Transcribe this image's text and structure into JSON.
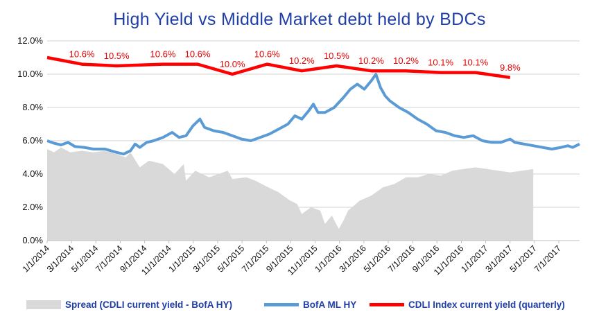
{
  "chart_data": {
    "type": "line",
    "title": "High Yield  vs  Middle Market debt held by BDCs",
    "xlabel": "",
    "ylabel": "",
    "ylim": [
      0,
      12
    ],
    "y_ticks": [
      "0.0%",
      "2.0%",
      "4.0%",
      "6.0%",
      "8.0%",
      "10.0%",
      "12.0%"
    ],
    "x_ticks": [
      "1/1/2014",
      "3/1/2014",
      "5/1/2014",
      "7/1/2014",
      "9/1/2014",
      "11/1/2014",
      "1/1/2015",
      "3/1/2015",
      "5/1/2015",
      "7/1/2015",
      "9/1/2015",
      "11/1/2015",
      "1/1/2016",
      "3/1/2016",
      "5/1/2016",
      "7/1/2016",
      "9/1/2016",
      "11/1/2016",
      "1/1/2017",
      "3/1/2017",
      "5/1/2017",
      "7/1/2017"
    ],
    "grid": "horizontal",
    "legend_position": "bottom",
    "series": [
      {
        "name": "Spread (CDLI current yield - BofA HY)",
        "kind": "area",
        "color": "#d9d9d9",
        "points": [
          [
            0,
            5.5
          ],
          [
            0.3,
            5.3
          ],
          [
            0.6,
            5.6
          ],
          [
            1,
            5.3
          ],
          [
            1.5,
            5.4
          ],
          [
            2,
            5.3
          ],
          [
            2.5,
            5.4
          ],
          [
            3,
            5.2
          ],
          [
            3.4,
            5.0
          ],
          [
            3.6,
            5.3
          ],
          [
            4,
            4.4
          ],
          [
            4.4,
            4.8
          ],
          [
            5,
            4.6
          ],
          [
            5.5,
            4.0
          ],
          [
            5.9,
            4.6
          ],
          [
            6,
            3.6
          ],
          [
            6.4,
            4.2
          ],
          [
            7,
            3.8
          ],
          [
            7.4,
            4.0
          ],
          [
            7.8,
            4.2
          ],
          [
            8,
            3.7
          ],
          [
            8.6,
            3.8
          ],
          [
            9,
            3.6
          ],
          [
            9.4,
            3.3
          ],
          [
            10,
            2.9
          ],
          [
            10.5,
            2.4
          ],
          [
            10.8,
            2.2
          ],
          [
            11,
            1.6
          ],
          [
            11.4,
            2.0
          ],
          [
            11.8,
            1.8
          ],
          [
            12,
            1.0
          ],
          [
            12.3,
            1.5
          ],
          [
            12.6,
            0.7
          ],
          [
            12.8,
            1.2
          ],
          [
            13,
            1.8
          ],
          [
            13.5,
            2.4
          ],
          [
            14,
            2.7
          ],
          [
            14.5,
            3.2
          ],
          [
            15,
            3.4
          ],
          [
            15.5,
            3.8
          ],
          [
            16,
            3.8
          ],
          [
            16.5,
            4.0
          ],
          [
            17,
            3.9
          ],
          [
            17.5,
            4.2
          ],
          [
            18,
            4.3
          ],
          [
            18.5,
            4.4
          ],
          [
            19,
            4.3
          ],
          [
            19.5,
            4.2
          ],
          [
            20,
            4.1
          ],
          [
            20.5,
            4.2
          ],
          [
            21,
            4.3
          ]
        ]
      },
      {
        "name": "BofA ML HY",
        "kind": "line",
        "color": "#5b9bd5",
        "points": [
          [
            0,
            6.0
          ],
          [
            0.3,
            5.85
          ],
          [
            0.6,
            5.75
          ],
          [
            0.9,
            5.9
          ],
          [
            1.2,
            5.65
          ],
          [
            1.6,
            5.6
          ],
          [
            2,
            5.5
          ],
          [
            2.5,
            5.5
          ],
          [
            3,
            5.3
          ],
          [
            3.3,
            5.2
          ],
          [
            3.6,
            5.4
          ],
          [
            3.8,
            5.8
          ],
          [
            4,
            5.6
          ],
          [
            4.3,
            5.9
          ],
          [
            4.6,
            6.0
          ],
          [
            5,
            6.2
          ],
          [
            5.4,
            6.5
          ],
          [
            5.7,
            6.2
          ],
          [
            6,
            6.3
          ],
          [
            6.3,
            6.9
          ],
          [
            6.6,
            7.3
          ],
          [
            6.8,
            6.8
          ],
          [
            7.2,
            6.6
          ],
          [
            7.6,
            6.5
          ],
          [
            8,
            6.3
          ],
          [
            8.4,
            6.1
          ],
          [
            8.8,
            6.0
          ],
          [
            9.2,
            6.2
          ],
          [
            9.6,
            6.4
          ],
          [
            10,
            6.7
          ],
          [
            10.4,
            7.0
          ],
          [
            10.7,
            7.5
          ],
          [
            11,
            7.3
          ],
          [
            11.3,
            7.8
          ],
          [
            11.5,
            8.2
          ],
          [
            11.7,
            7.7
          ],
          [
            12,
            7.7
          ],
          [
            12.4,
            8.0
          ],
          [
            12.8,
            8.6
          ],
          [
            13.1,
            9.1
          ],
          [
            13.4,
            9.4
          ],
          [
            13.7,
            9.1
          ],
          [
            14,
            9.6
          ],
          [
            14.2,
            10.0
          ],
          [
            14.4,
            9.2
          ],
          [
            14.6,
            8.7
          ],
          [
            14.8,
            8.4
          ],
          [
            15.2,
            8.0
          ],
          [
            15.6,
            7.7
          ],
          [
            16,
            7.3
          ],
          [
            16.4,
            7.0
          ],
          [
            16.8,
            6.6
          ],
          [
            17.2,
            6.5
          ],
          [
            17.6,
            6.3
          ],
          [
            18,
            6.2
          ],
          [
            18.4,
            6.3
          ],
          [
            18.8,
            6.0
          ],
          [
            19.2,
            5.9
          ],
          [
            19.6,
            5.9
          ],
          [
            20,
            6.1
          ],
          [
            20.2,
            5.9
          ],
          [
            20.6,
            5.8
          ],
          [
            21,
            5.7
          ],
          [
            21.4,
            5.6
          ],
          [
            21.8,
            5.5
          ],
          [
            22.2,
            5.6
          ],
          [
            22.5,
            5.7
          ],
          [
            22.7,
            5.6
          ],
          [
            23,
            5.8
          ]
        ]
      },
      {
        "name": "CDLI Index current yield (quarterly)",
        "kind": "line",
        "color": "#ff0000",
        "points": [
          [
            0,
            11.0
          ],
          [
            1.5,
            10.6
          ],
          [
            3,
            10.5
          ],
          [
            5,
            10.6
          ],
          [
            6.5,
            10.6
          ],
          [
            8,
            10.0
          ],
          [
            9.5,
            10.6
          ],
          [
            11,
            10.2
          ],
          [
            12.5,
            10.5
          ],
          [
            14,
            10.2
          ],
          [
            15.5,
            10.2
          ],
          [
            17,
            10.1
          ],
          [
            18.5,
            10.1
          ],
          [
            20,
            9.8
          ]
        ],
        "labels": [
          "",
          "10.6%",
          "10.5%",
          "10.6%",
          "10.6%",
          "10.0%",
          "10.6%",
          "10.2%",
          "10.5%",
          "10.2%",
          "10.2%",
          "10.1%",
          "10.1%",
          "9.8%"
        ]
      }
    ]
  },
  "legend": {
    "spread": "Spread (CDLI current yield - BofA HY)",
    "hy": "BofA ML HY",
    "cdli": "CDLI Index current yield (quarterly)"
  },
  "colors": {
    "title": "#1f3ea6",
    "grid": "#d0d0d0"
  }
}
